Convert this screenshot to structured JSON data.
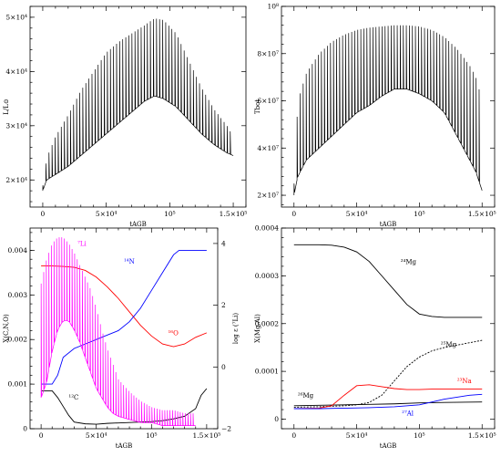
{
  "chart_data": [
    {
      "type": "line",
      "panel": "top-left",
      "xlabel": "tAGB",
      "ylabel": "L/L⊙",
      "xlim": [
        -10000,
        160000
      ],
      "ylim": [
        15000,
        52000
      ],
      "xticks": [
        "0",
        "5×10⁴",
        "10⁵",
        "1.5×10⁵"
      ],
      "yticks": [
        "2×10⁴",
        "3×10⁴",
        "4×10⁴",
        "5×10⁴"
      ],
      "series": [
        {
          "color": "#000000",
          "envelope_x": [
            0,
            3000,
            10000,
            20000,
            30000,
            40000,
            50000,
            60000,
            70000,
            80000,
            88000,
            95000,
            105000,
            115000,
            125000,
            135000,
            145000,
            150000
          ],
          "envelope_top": [
            19000,
            24000,
            28000,
            32000,
            36500,
            40000,
            43500,
            45500,
            47000,
            48500,
            49800,
            49500,
            47000,
            42000,
            37000,
            33000,
            30000,
            28000
          ],
          "envelope_base": [
            18000,
            20000,
            21000,
            22500,
            24500,
            26500,
            28500,
            30500,
            32500,
            34500,
            35500,
            35000,
            33500,
            31000,
            28500,
            26500,
            25000,
            24500
          ],
          "pulses": 62
        }
      ]
    },
    {
      "type": "line",
      "panel": "top-right",
      "xlabel": "tAGB",
      "ylabel": "Tbot",
      "xlim": [
        -10000,
        160000
      ],
      "ylim": [
        15000000,
        100000000
      ],
      "xticks": [
        "0",
        "5×10⁴",
        "10⁵",
        "1.5×10⁵"
      ],
      "yticks": [
        "2×10⁷",
        "4×10⁷",
        "6×10⁷",
        "8×10⁷",
        "10⁸"
      ],
      "series": [
        {
          "color": "#000000",
          "envelope_x": [
            0,
            3000,
            10000,
            20000,
            30000,
            40000,
            50000,
            60000,
            70000,
            80000,
            90000,
            100000,
            110000,
            120000,
            130000,
            140000,
            145000,
            150000
          ],
          "envelope_top": [
            25000000,
            60000000,
            72000000,
            80000000,
            85000000,
            88000000,
            90000000,
            91000000,
            91500000,
            92000000,
            92000000,
            91500000,
            90000000,
            87000000,
            82000000,
            75000000,
            70000000,
            60000000
          ],
          "envelope_base": [
            20000000,
            28000000,
            35000000,
            40000000,
            45000000,
            50000000,
            55000000,
            58000000,
            62000000,
            65000000,
            65000000,
            63000000,
            60000000,
            55000000,
            45000000,
            35000000,
            30000000,
            22000000
          ],
          "pulses": 62
        }
      ]
    },
    {
      "type": "line",
      "panel": "bottom-left",
      "xlabel": "tAGB",
      "ylabel": "X(C,N,O)",
      "ylabel_right": "log ε (⁷Li)",
      "xlim": [
        -10000,
        160000
      ],
      "ylim": [
        0,
        0.0045
      ],
      "ylim_right": [
        -2,
        4.5
      ],
      "xticks": [
        "0",
        "5×10⁴",
        "10⁵",
        "1.5×10⁵"
      ],
      "yticks": [
        "0",
        "0.001",
        "0.002",
        "0.003",
        "0.004"
      ],
      "yticks_right": [
        "−2",
        "0",
        "2",
        "4"
      ],
      "series": [
        {
          "name": "¹⁶O",
          "color": "#ff0000",
          "x": [
            0,
            10000,
            20000,
            30000,
            40000,
            50000,
            60000,
            70000,
            80000,
            90000,
            100000,
            110000,
            120000,
            130000,
            140000,
            150000
          ],
          "y": [
            0.00365,
            0.00365,
            0.00364,
            0.00362,
            0.00355,
            0.0034,
            0.00318,
            0.00292,
            0.00262,
            0.00232,
            0.00208,
            0.0019,
            0.00184,
            0.0019,
            0.00205,
            0.00215
          ]
        },
        {
          "name": "¹⁴N",
          "color": "#0000ff",
          "x": [
            0,
            10000,
            15000,
            20000,
            30000,
            40000,
            50000,
            60000,
            70000,
            80000,
            90000,
            100000,
            110000,
            120000,
            125000,
            135000,
            150000
          ],
          "y": [
            0.001,
            0.001,
            0.0012,
            0.0016,
            0.0018,
            0.0019,
            0.002,
            0.0021,
            0.0022,
            0.0024,
            0.0027,
            0.0031,
            0.0035,
            0.0039,
            0.004,
            0.004,
            0.004
          ]
        },
        {
          "name": "¹²C",
          "color": "#000000",
          "x": [
            0,
            10000,
            15000,
            20000,
            25000,
            30000,
            40000,
            50000,
            60000,
            70000,
            80000,
            90000,
            100000,
            110000,
            120000,
            130000,
            140000,
            145000,
            150000
          ],
          "y": [
            0.00085,
            0.00085,
            0.0007,
            0.0005,
            0.0003,
            0.00015,
            0.00011,
            0.0001,
            0.00012,
            0.00013,
            0.00014,
            0.00015,
            0.00016,
            0.00018,
            0.00022,
            0.00028,
            0.00045,
            0.00075,
            0.0009
          ]
        },
        {
          "name": "⁷Li",
          "color": "#ff00ff",
          "axis": "right",
          "envelope_x": [
            0,
            5000,
            10000,
            15000,
            20000,
            25000,
            30000,
            35000,
            40000,
            45000,
            50000,
            55000,
            60000,
            65000,
            70000,
            80000,
            90000,
            100000,
            110000,
            120000,
            130000,
            140000
          ],
          "envelope_top": [
            2.7,
            3.5,
            4.0,
            4.2,
            4.2,
            4.0,
            3.7,
            3.3,
            2.9,
            2.5,
            1.9,
            1.2,
            0.6,
            0.1,
            -0.4,
            -0.8,
            -1.1,
            -1.3,
            -1.4,
            -1.4,
            -1.5,
            -1.5
          ],
          "envelope_base": [
            -1.0,
            -0.5,
            0.5,
            1.2,
            1.5,
            1.5,
            1.2,
            0.8,
            0.3,
            -0.2,
            -0.7,
            -1.0,
            -1.3,
            -1.5,
            -1.6,
            -1.7,
            -1.8,
            -1.8,
            -1.9,
            -1.9,
            -1.9,
            -1.9
          ],
          "pulses": 60
        }
      ],
      "annotations": [
        {
          "text": "⁷Li",
          "color": "#ff00ff",
          "x": 33000,
          "y": 0.0041
        },
        {
          "text": "¹⁴N",
          "color": "#0000ff",
          "x": 75000,
          "y": 0.0037
        },
        {
          "text": "¹⁶O",
          "color": "#ff0000",
          "x": 115000,
          "y": 0.0021
        },
        {
          "text": "¹²C",
          "color": "#000000",
          "x": 25000,
          "y": 0.00065
        }
      ]
    },
    {
      "type": "line",
      "panel": "bottom-right",
      "xlabel": "tAGB",
      "ylabel": "X(Mg,Al)",
      "xlim": [
        -10000,
        160000
      ],
      "ylim": [
        -2e-05,
        0.0004
      ],
      "xticks": [
        "0",
        "5×10⁴",
        "10⁵",
        "1.5×10⁵"
      ],
      "yticks": [
        "0",
        "0.0001",
        "0.0002",
        "0.0003",
        "0.0004"
      ],
      "series": [
        {
          "name": "²⁴Mg",
          "color": "#000000",
          "x": [
            0,
            20000,
            30000,
            40000,
            50000,
            60000,
            70000,
            80000,
            90000,
            100000,
            110000,
            120000,
            130000,
            140000,
            150000
          ],
          "y": [
            0.000365,
            0.000365,
            0.000364,
            0.00036,
            0.00035,
            0.00033,
            0.0003,
            0.00027,
            0.00024,
            0.00022,
            0.000215,
            0.000213,
            0.000213,
            0.000213,
            0.000213
          ],
          "label": "²⁴Mg",
          "label_x": 85000,
          "label_y": 0.000325
        },
        {
          "name": "²⁵Mg",
          "color": "#000000",
          "dash": "2,1.5",
          "x": [
            0,
            20000,
            30000,
            40000,
            50000,
            60000,
            70000,
            80000,
            90000,
            100000,
            110000,
            120000,
            130000,
            140000,
            150000
          ],
          "y": [
            2.5e-05,
            2.6e-05,
            2.7e-05,
            2.8e-05,
            3e-05,
            3.5e-05,
            5e-05,
            8e-05,
            0.00011,
            0.00013,
            0.000143,
            0.00015,
            0.000155,
            0.00016,
            0.000165
          ],
          "label": "²⁵Mg",
          "label_x": 117000,
          "label_y": 0.000152
        },
        {
          "name": "²⁶Mg",
          "color": "#000000",
          "x": [
            0,
            20000,
            40000,
            60000,
            80000,
            100000,
            120000,
            150000
          ],
          "y": [
            2.8e-05,
            2.9e-05,
            3e-05,
            3.1e-05,
            3.2e-05,
            3.4e-05,
            3.5e-05,
            3.6e-05
          ],
          "label": "²⁶Mg",
          "label_x": 3000,
          "label_y": 4.5e-05
        },
        {
          "name": "²³Na",
          "color": "#ff0000",
          "x": [
            0,
            20000,
            30000,
            40000,
            50000,
            60000,
            70000,
            80000,
            90000,
            100000,
            110000,
            120000,
            130000,
            150000
          ],
          "y": [
            2.2e-05,
            2.3e-05,
            2.8e-05,
            5e-05,
            7e-05,
            7.2e-05,
            6.8e-05,
            6.4e-05,
            6.2e-05,
            6.2e-05,
            6.3e-05,
            6.3e-05,
            6.3e-05,
            6.3e-05
          ],
          "label": "²³Na",
          "label_x": 130000,
          "label_y": 7.5e-05
        },
        {
          "name": "²⁷Al",
          "color": "#0000ff",
          "x": [
            0,
            20000,
            40000,
            60000,
            80000,
            100000,
            110000,
            120000,
            130000,
            140000,
            150000
          ],
          "y": [
            2.2e-05,
            2.2e-05,
            2.3e-05,
            2.4e-05,
            2.6e-05,
            3e-05,
            3.6e-05,
            4.2e-05,
            4.6e-05,
            5e-05,
            5.2e-05
          ],
          "label": "²⁷Al",
          "label_x": 86000,
          "label_y": 8e-06
        }
      ]
    }
  ]
}
